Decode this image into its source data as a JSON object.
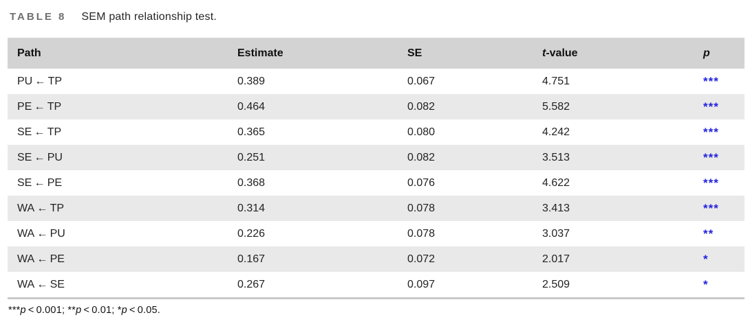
{
  "caption": {
    "tag": "TABLE 8",
    "title": "SEM path relationship test."
  },
  "accent_colors": {
    "significance_star_blue": "#2323dd",
    "header_background": "#d3d3d3",
    "alt_row_background": "#e9e9e9"
  },
  "table": {
    "headers": {
      "path": "Path",
      "estimate": "Estimate",
      "se": "SE",
      "t_italic": "t",
      "t_rest": "-value",
      "p": "p"
    },
    "rows": [
      {
        "path": "PU ← TP",
        "estimate": "0.389",
        "se": "0.067",
        "t_value": "4.751",
        "p": "***"
      },
      {
        "path": "PE ← TP",
        "estimate": "0.464",
        "se": "0.082",
        "t_value": "5.582",
        "p": "***"
      },
      {
        "path": "SE ← TP",
        "estimate": "0.365",
        "se": "0.080",
        "t_value": "4.242",
        "p": "***"
      },
      {
        "path": "SE ← PU",
        "estimate": "0.251",
        "se": "0.082",
        "t_value": "3.513",
        "p": "***"
      },
      {
        "path": "SE ← PE",
        "estimate": "0.368",
        "se": "0.076",
        "t_value": "4.622",
        "p": "***"
      },
      {
        "path": "WA ← TP",
        "estimate": "0.314",
        "se": "0.078",
        "t_value": "3.413",
        "p": "***"
      },
      {
        "path": "WA ← PU",
        "estimate": "0.226",
        "se": "0.078",
        "t_value": "3.037",
        "p": "**"
      },
      {
        "path": "WA ← PE",
        "estimate": "0.167",
        "se": "0.072",
        "t_value": "2.017",
        "p": "*"
      },
      {
        "path": "WA ← SE",
        "estimate": "0.267",
        "se": "0.097",
        "t_value": "2.509",
        "p": "*"
      }
    ]
  },
  "footnote": {
    "s1": "***",
    "p1": "p",
    "c1": " < 0.001; ",
    "s2": "**",
    "p2": "p",
    "c2": " < 0.01; ",
    "s3": "*",
    "p3": "p",
    "c3": " < 0.05."
  },
  "chart_data": {
    "type": "table",
    "title": "TABLE 8  SEM path relationship test.",
    "columns": [
      "Path",
      "Estimate",
      "SE",
      "t-value",
      "p"
    ],
    "rows": [
      [
        "PU ← TP",
        0.389,
        0.067,
        4.751,
        "***"
      ],
      [
        "PE ← TP",
        0.464,
        0.082,
        5.582,
        "***"
      ],
      [
        "SE ← TP",
        0.365,
        0.08,
        4.242,
        "***"
      ],
      [
        "SE ← PU",
        0.251,
        0.082,
        3.513,
        "***"
      ],
      [
        "SE ← PE",
        0.368,
        0.076,
        4.622,
        "***"
      ],
      [
        "WA ← TP",
        0.314,
        0.078,
        3.413,
        "***"
      ],
      [
        "WA ← PU",
        0.226,
        0.078,
        3.037,
        "**"
      ],
      [
        "WA ← PE",
        0.167,
        0.072,
        2.017,
        "*"
      ],
      [
        "WA ← SE",
        0.267,
        0.097,
        2.509,
        "*"
      ]
    ],
    "footnote": "***p < 0.001; **p < 0.01; *p < 0.05."
  }
}
